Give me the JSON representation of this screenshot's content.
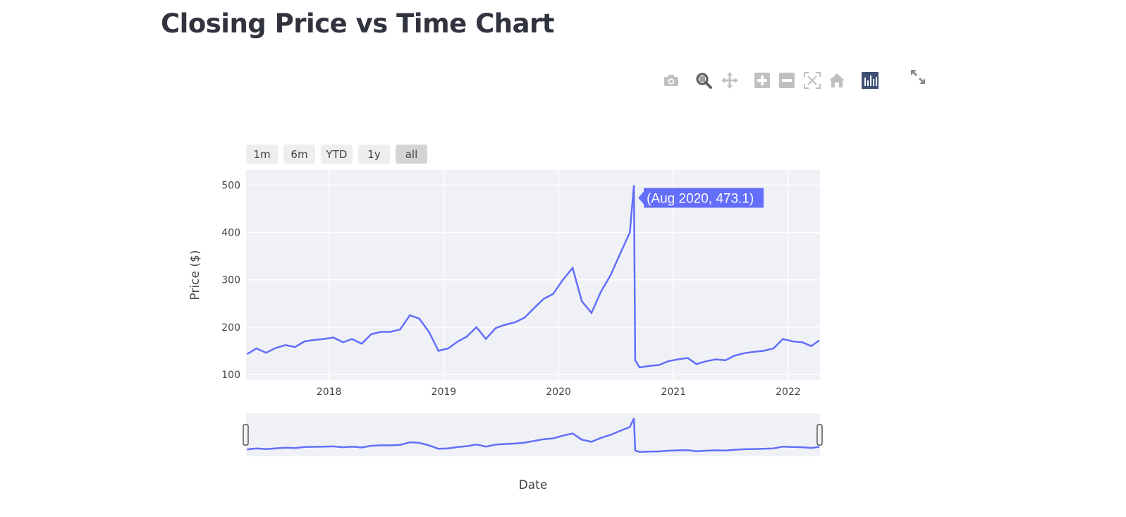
{
  "page": {
    "title": "Closing Price vs Time Chart"
  },
  "modebar": {
    "icons": [
      "camera-icon",
      "zoom-icon",
      "pan-icon",
      "zoom-in-icon",
      "zoom-out-icon",
      "autoscale-icon",
      "reset-axes-icon",
      "plotly-logo-icon",
      "fullscreen-icon"
    ],
    "active_color": "#606060",
    "inactive_color": "#c0c0c0"
  },
  "range_selector": {
    "buttons": [
      {
        "label": "1m",
        "active": false
      },
      {
        "label": "6m",
        "active": false
      },
      {
        "label": "YTD",
        "active": false
      },
      {
        "label": "1y",
        "active": false
      },
      {
        "label": "all",
        "active": true
      }
    ]
  },
  "hover": {
    "text": "(Aug 2020, 473.1)",
    "color": "#636efa"
  },
  "chart_data": {
    "type": "line",
    "title": "",
    "xlabel": "Date",
    "ylabel": "Price ($)",
    "xlim": [
      "2017-04-12",
      "2022-04-12"
    ],
    "ylim": [
      88,
      532
    ],
    "x_ticks": [
      "2018",
      "2019",
      "2020",
      "2021",
      "2022"
    ],
    "y_ticks": [
      100,
      200,
      300,
      400,
      500
    ],
    "grid": true,
    "line_color": "#636efa",
    "plot_bg": "#eff1f6",
    "rangeslider": true,
    "series": [
      {
        "x": [
          "2017-04-15",
          "2017-05-15",
          "2017-06-15",
          "2017-07-15",
          "2017-08-15",
          "2017-09-15",
          "2017-10-15",
          "2017-11-15",
          "2017-12-15",
          "2018-01-15",
          "2018-02-15",
          "2018-03-15",
          "2018-04-15",
          "2018-05-15",
          "2018-06-15",
          "2018-07-15",
          "2018-08-15",
          "2018-09-15",
          "2018-10-15",
          "2018-11-15",
          "2018-12-15",
          "2019-01-15",
          "2019-02-15",
          "2019-03-15",
          "2019-04-15",
          "2019-05-15",
          "2019-06-15",
          "2019-07-15",
          "2019-08-15",
          "2019-09-15",
          "2019-10-15",
          "2019-11-15",
          "2019-12-15",
          "2020-01-15",
          "2020-02-15",
          "2020-03-15",
          "2020-04-15",
          "2020-05-15",
          "2020-06-15",
          "2020-07-15",
          "2020-08-15",
          "2020-08-28",
          "2020-09-01",
          "2020-09-15",
          "2020-10-15",
          "2020-11-15",
          "2020-12-15",
          "2021-01-15",
          "2021-02-15",
          "2021-03-15",
          "2021-04-15",
          "2021-05-15",
          "2021-06-15",
          "2021-07-15",
          "2021-08-15",
          "2021-09-15",
          "2021-10-15",
          "2021-11-15",
          "2021-12-15",
          "2022-01-15",
          "2022-02-15",
          "2022-03-15",
          "2022-04-10"
        ],
        "y": [
          143,
          155,
          146,
          156,
          162,
          158,
          170,
          173,
          175,
          178,
          168,
          175,
          165,
          185,
          190,
          190,
          195,
          225,
          218,
          190,
          150,
          155,
          170,
          180,
          200,
          175,
          198,
          205,
          210,
          220,
          240,
          260,
          270,
          300,
          325,
          255,
          230,
          275,
          310,
          355,
          400,
          500,
          130,
          115,
          118,
          120,
          128,
          132,
          135,
          122,
          128,
          132,
          130,
          140,
          145,
          148,
          150,
          155,
          175,
          170,
          168,
          160,
          172
        ]
      }
    ]
  }
}
